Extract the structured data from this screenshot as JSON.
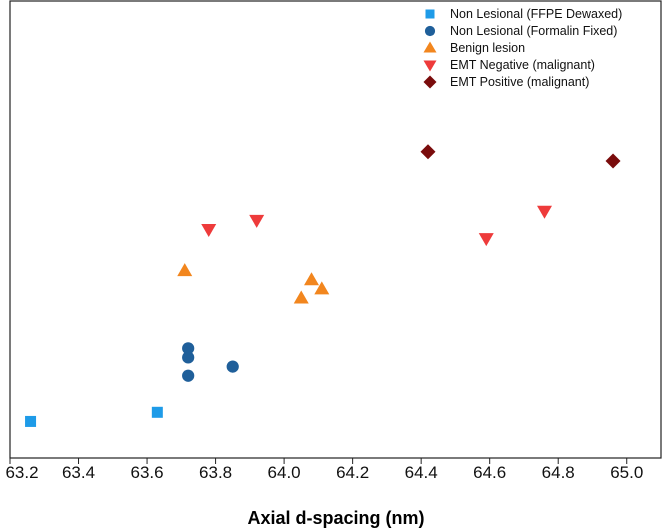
{
  "chart_data": {
    "type": "scatter",
    "xlabel": "Axial d-spacing (nm)",
    "xlim": [
      63.2,
      65.1
    ],
    "ylim": [
      0,
      10
    ],
    "xticks": [
      "63.2",
      "63.4",
      "63.6",
      "63.8",
      "64.0",
      "64.2",
      "64.4",
      "64.6",
      "64.8",
      "65.0"
    ],
    "xtick_values": [
      63.2,
      63.4,
      63.6,
      63.8,
      64.0,
      64.2,
      64.4,
      64.6,
      64.8,
      65.0
    ],
    "y_axis_ticks_shown": false,
    "legend_position": "top-right",
    "series": [
      {
        "name": "Non Lesional (FFPE Dewaxed)",
        "marker": "square",
        "color": "#1e9be8",
        "points": [
          [
            63.26,
            0.8
          ],
          [
            63.63,
            1.0
          ]
        ]
      },
      {
        "name": "Non Lesional (Formalin Fixed)",
        "marker": "circle",
        "color": "#1f5f9a",
        "points": [
          [
            63.72,
            1.8
          ],
          [
            63.72,
            2.2
          ],
          [
            63.72,
            2.4
          ],
          [
            63.85,
            2.0
          ]
        ]
      },
      {
        "name": "Benign lesion",
        "marker": "triangle-up",
        "color": "#f2861e",
        "points": [
          [
            63.71,
            4.1
          ],
          [
            64.05,
            3.5
          ],
          [
            64.08,
            3.9
          ],
          [
            64.11,
            3.7
          ]
        ]
      },
      {
        "name": "EMT Negative (malignant)",
        "marker": "triangle-down",
        "color": "#ee3b3b",
        "points": [
          [
            63.78,
            5.0
          ],
          [
            63.92,
            5.2
          ],
          [
            64.59,
            4.8
          ],
          [
            64.76,
            5.4
          ]
        ]
      },
      {
        "name": "EMT Positive (malignant)",
        "marker": "diamond",
        "color": "#7a0c0c",
        "points": [
          [
            64.42,
            6.7
          ],
          [
            64.96,
            6.5
          ]
        ]
      }
    ]
  }
}
